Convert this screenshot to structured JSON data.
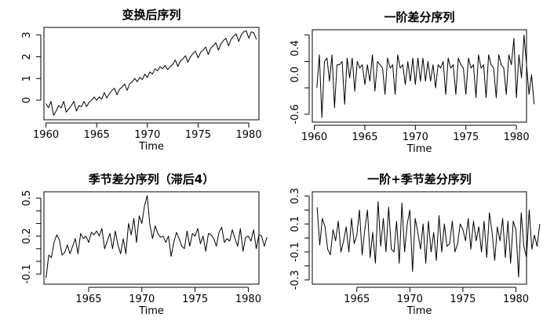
{
  "figure": {
    "background": "#ffffff",
    "line_color": "#000000"
  },
  "chart_data": [
    {
      "type": "line",
      "title": "变换后序列",
      "xlabel": "Time",
      "ylabel": "",
      "xlim": [
        1959.8,
        1981.0
      ],
      "ylim": [
        -0.9,
        3.35
      ],
      "xticks": [
        1960,
        1965,
        1970,
        1975,
        1980
      ],
      "yticks": [
        0,
        1,
        2,
        3
      ],
      "x_start": 1960.0,
      "x_step": 0.25,
      "values": [
        -0.15,
        -0.35,
        -0.05,
        -0.7,
        -0.5,
        -0.25,
        -0.35,
        -0.05,
        -0.55,
        -0.4,
        -0.25,
        -0.05,
        -0.5,
        -0.25,
        -0.3,
        -0.05,
        -0.3,
        -0.1,
        0.0,
        0.15,
        0.0,
        0.15,
        0.05,
        0.35,
        0.1,
        0.3,
        0.45,
        0.55,
        0.25,
        0.5,
        0.6,
        0.75,
        0.45,
        0.75,
        0.85,
        1.0,
        0.85,
        1.05,
        0.95,
        1.2,
        1.05,
        1.3,
        1.2,
        1.45,
        1.35,
        1.55,
        1.45,
        1.6,
        1.4,
        1.55,
        1.65,
        1.85,
        1.55,
        1.8,
        1.9,
        2.05,
        1.75,
        2.0,
        2.15,
        2.25,
        1.95,
        2.2,
        2.3,
        2.45,
        2.1,
        2.4,
        2.5,
        2.65,
        2.3,
        2.6,
        2.75,
        2.85,
        2.5,
        2.8,
        2.95,
        3.05,
        2.7,
        3.0,
        3.15,
        3.2,
        2.85,
        3.15,
        3.1,
        2.8
      ]
    },
    {
      "type": "line",
      "title": "一阶差分序列",
      "xlabel": "Time",
      "ylabel": "",
      "xlim": [
        1959.8,
        1981.0
      ],
      "ylim": [
        -0.72,
        0.68
      ],
      "xticks": [
        1960,
        1965,
        1970,
        1975,
        1980
      ],
      "yticks": [
        -0.6,
        -0.2,
        0.2,
        0.6
      ],
      "ytick_labels": [
        "-0.6",
        "0.0",
        "0.4"
      ],
      "ytick_label_values": [
        -0.6,
        0.0,
        0.4
      ],
      "x_start": 1960.25,
      "x_step": 0.25,
      "values": [
        -0.2,
        0.3,
        -0.65,
        0.2,
        0.25,
        -0.1,
        0.3,
        -0.5,
        0.15,
        0.15,
        0.2,
        -0.45,
        0.25,
        -0.05,
        0.25,
        -0.25,
        0.2,
        0.1,
        0.15,
        -0.15,
        0.15,
        -0.1,
        0.3,
        -0.25,
        0.2,
        0.15,
        0.1,
        -0.3,
        0.25,
        0.1,
        0.15,
        -0.3,
        0.3,
        0.1,
        0.15,
        -0.15,
        0.2,
        -0.1,
        0.25,
        -0.15,
        0.25,
        -0.1,
        0.25,
        -0.1,
        0.2,
        -0.1,
        0.15,
        -0.2,
        0.15,
        0.1,
        0.2,
        -0.3,
        0.25,
        0.1,
        0.15,
        -0.3,
        0.25,
        0.15,
        0.1,
        -0.3,
        0.25,
        0.1,
        0.15,
        -0.35,
        0.3,
        0.1,
        0.15,
        -0.35,
        0.3,
        0.15,
        0.1,
        -0.35,
        0.3,
        0.15,
        0.1,
        -0.3,
        0.3,
        0.15,
        0.55,
        -0.35,
        0.3,
        -0.05,
        0.6,
        0.15,
        -0.3,
        0.0,
        -0.45
      ]
    },
    {
      "type": "line",
      "title": "季节差分序列（滞后4）",
      "xlabel": "Time",
      "ylabel": "",
      "xlim": [
        1960.8,
        1981.0
      ],
      "ylim": [
        -0.18,
        0.55
      ],
      "xticks": [
        1965,
        1970,
        1975,
        1980
      ],
      "yticks": [
        -0.1,
        0.0,
        0.1,
        0.2,
        0.3,
        0.4,
        0.5
      ],
      "ytick_labels": [
        "-0.1",
        "0.2",
        "0.5"
      ],
      "ytick_label_values": [
        -0.1,
        0.2,
        0.5
      ],
      "x_start": 1961.0,
      "x_step": 0.25,
      "values": [
        -0.13,
        0.05,
        0.03,
        0.15,
        0.21,
        0.17,
        0.05,
        0.07,
        0.13,
        0.06,
        0.12,
        0.18,
        0.06,
        0.22,
        0.18,
        0.2,
        0.15,
        0.23,
        0.21,
        0.24,
        0.2,
        0.26,
        0.1,
        0.16,
        0.22,
        0.1,
        0.24,
        0.13,
        0.06,
        0.18,
        0.06,
        0.3,
        0.21,
        0.34,
        0.15,
        0.36,
        0.3,
        0.44,
        0.52,
        0.29,
        0.18,
        0.28,
        0.22,
        0.19,
        0.2,
        0.15,
        0.2,
        0.04,
        0.15,
        0.23,
        0.18,
        0.12,
        0.1,
        0.24,
        0.12,
        0.22,
        0.2,
        0.26,
        0.14,
        0.2,
        0.08,
        0.22,
        0.21,
        0.18,
        0.12,
        0.23,
        0.27,
        0.15,
        0.18,
        0.16,
        0.25,
        0.18,
        0.12,
        0.26,
        0.08,
        0.19,
        0.2,
        0.16,
        0.25,
        0.1,
        0.21,
        0.2,
        0.12,
        0.19
      ]
    },
    {
      "type": "line",
      "title": "一阶+季节差分序列",
      "xlabel": "Time",
      "ylabel": "",
      "xlim": [
        1960.8,
        1981.0
      ],
      "ylim": [
        -0.33,
        0.33
      ],
      "xticks": [
        1965,
        1970,
        1975,
        1980
      ],
      "yticks": [
        -0.3,
        -0.2,
        -0.1,
        0.0,
        0.1,
        0.2,
        0.3
      ],
      "ytick_labels": [
        "-0.3",
        "-0.1",
        "0.1",
        "0.3"
      ],
      "ytick_label_values": [
        -0.3,
        -0.1,
        0.1,
        0.3
      ],
      "x_start": 1961.25,
      "x_step": 0.25,
      "values": [
        0.22,
        -0.05,
        0.14,
        0.08,
        -0.08,
        -0.12,
        0.06,
        -0.02,
        0.12,
        -0.1,
        -0.02,
        0.08,
        -0.1,
        0.14,
        -0.04,
        0.02,
        0.2,
        -0.12,
        0.06,
        0.2,
        -0.14,
        0.04,
        -0.18,
        0.26,
        -0.06,
        0.14,
        -0.1,
        0.22,
        -0.08,
        -0.1,
        0.12,
        -0.18,
        0.25,
        -0.1,
        0.1,
        0.2,
        -0.24,
        0.14,
        0.04,
        -0.08,
        0.1,
        -0.18,
        0.12,
        -0.1,
        0.04,
        -0.16,
        0.16,
        -0.1,
        0.1,
        -0.06,
        -0.04,
        0.12,
        -0.1,
        -0.04,
        0.1,
        0.06,
        -0.02,
        0.14,
        -0.08,
        0.12,
        -0.02,
        0.08,
        -0.1,
        0.12,
        -0.14,
        0.18,
        0.04,
        -0.16,
        0.08,
        -0.02,
        0.14,
        -0.14,
        0.12,
        -0.18,
        0.12,
        0.06,
        -0.28,
        0.18,
        -0.06,
        -0.14,
        0.2,
        -0.08,
        0.02,
        -0.06,
        0.1
      ]
    }
  ]
}
